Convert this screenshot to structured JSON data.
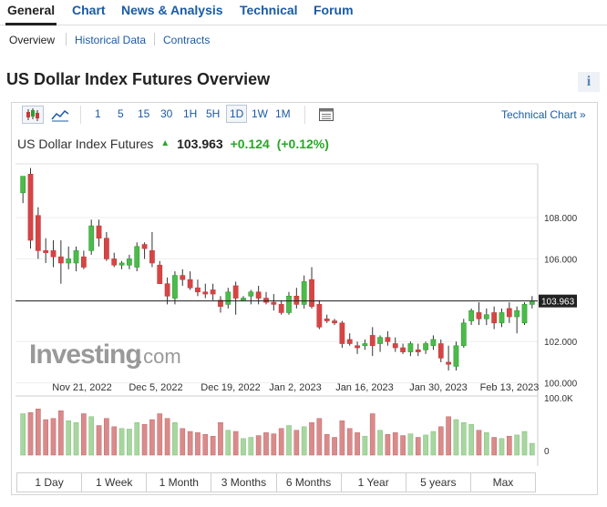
{
  "nav": {
    "tabs": [
      "General",
      "Chart",
      "News & Analysis",
      "Technical",
      "Forum"
    ],
    "active": "General"
  },
  "subnav": {
    "items": [
      "Overview",
      "Historical Data",
      "Contracts"
    ],
    "active": "Overview"
  },
  "page": {
    "title": "US Dollar Index Futures Overview",
    "info_icon": "i"
  },
  "toolbar": {
    "chart_type_icons": [
      "candlestick-icon",
      "line-chart-icon"
    ],
    "intervals": [
      "1",
      "5",
      "15",
      "30",
      "1H",
      "5H",
      "1D",
      "1W",
      "1M"
    ],
    "selected_interval": "1D",
    "table_icon": "table-icon",
    "technical_link": "Technical Chart »"
  },
  "quote": {
    "name": "US Dollar Index Futures",
    "arrow": "▲",
    "price": "103.963",
    "change": "+0.124",
    "change_pct": "(+0.12%)",
    "up_color": "#2aa52a"
  },
  "chart": {
    "watermark_main": "Investing",
    "watermark_suffix": ".com",
    "price_ticks": [
      "108.000",
      "106.000",
      "104.000",
      "102.000",
      "100.000"
    ],
    "last_price_label": "103.963",
    "date_ticks": [
      "Nov 21, 2022",
      "Dec 5, 2022",
      "Dec 19, 2022",
      "Jan 2, 2023",
      "Jan 16, 2023",
      "Jan 30, 2023",
      "Feb 13, 2023"
    ],
    "volume_ticks": [
      "100.0K",
      "0"
    ],
    "colors": {
      "up": "#2e9e2e",
      "down": "#c63a3a",
      "up_fill": "#4cbb4c",
      "down_fill": "#d64545",
      "vol_up": "#a8d6a0",
      "vol_down": "#d98b8b"
    }
  },
  "chart_data": {
    "type": "candlestick",
    "x_labels": [
      "Nov 21, 2022",
      "Dec 5, 2022",
      "Dec 19, 2022",
      "Jan 2, 2023",
      "Jan 16, 2023",
      "Jan 30, 2023",
      "Feb 13, 2023"
    ],
    "ylim": [
      99.5,
      110.6
    ],
    "y_ticks": [
      100,
      102,
      104,
      106,
      108
    ],
    "last_price": 103.963,
    "volume_ylim": [
      0,
      100000
    ],
    "candles": [
      {
        "o": 109.2,
        "h": 110.0,
        "l": 108.7,
        "c": 110.0,
        "v": 70000
      },
      {
        "o": 110.1,
        "h": 110.4,
        "l": 106.5,
        "c": 106.9,
        "v": 72000
      },
      {
        "o": 108.1,
        "h": 108.5,
        "l": 106.0,
        "c": 106.4,
        "v": 78000
      },
      {
        "o": 106.4,
        "h": 107.0,
        "l": 105.8,
        "c": 106.3,
        "v": 60000
      },
      {
        "o": 106.4,
        "h": 106.9,
        "l": 105.6,
        "c": 106.1,
        "v": 62000
      },
      {
        "o": 106.1,
        "h": 106.9,
        "l": 104.8,
        "c": 105.8,
        "v": 75000
      },
      {
        "o": 105.8,
        "h": 106.6,
        "l": 105.5,
        "c": 106.0,
        "v": 58000
      },
      {
        "o": 105.8,
        "h": 106.6,
        "l": 105.4,
        "c": 106.4,
        "v": 55000
      },
      {
        "o": 106.1,
        "h": 106.4,
        "l": 105.5,
        "c": 105.6,
        "v": 70000
      },
      {
        "o": 106.4,
        "h": 107.9,
        "l": 106.2,
        "c": 107.6,
        "v": 65000
      },
      {
        "o": 107.6,
        "h": 107.9,
        "l": 106.6,
        "c": 107.0,
        "v": 50000
      },
      {
        "o": 107.0,
        "h": 107.3,
        "l": 105.9,
        "c": 106.0,
        "v": 62000
      },
      {
        "o": 106.0,
        "h": 106.3,
        "l": 105.6,
        "c": 105.7,
        "v": 48000
      },
      {
        "o": 105.7,
        "h": 105.9,
        "l": 105.5,
        "c": 105.8,
        "v": 45000
      },
      {
        "o": 105.7,
        "h": 106.2,
        "l": 105.5,
        "c": 106.0,
        "v": 44000
      },
      {
        "o": 105.6,
        "h": 106.8,
        "l": 105.4,
        "c": 106.6,
        "v": 55000
      },
      {
        "o": 106.7,
        "h": 106.8,
        "l": 106.0,
        "c": 106.5,
        "v": 52000
      },
      {
        "o": 106.4,
        "h": 107.3,
        "l": 105.6,
        "c": 105.8,
        "v": 60000
      },
      {
        "o": 105.7,
        "h": 105.9,
        "l": 104.8,
        "c": 104.8,
        "v": 70000
      },
      {
        "o": 104.8,
        "h": 105.1,
        "l": 103.8,
        "c": 104.2,
        "v": 62000
      },
      {
        "o": 104.1,
        "h": 105.4,
        "l": 103.8,
        "c": 105.2,
        "v": 55000
      },
      {
        "o": 105.2,
        "h": 105.5,
        "l": 104.7,
        "c": 105.0,
        "v": 45000
      },
      {
        "o": 105.0,
        "h": 105.4,
        "l": 104.5,
        "c": 104.6,
        "v": 40000
      },
      {
        "o": 104.6,
        "h": 105.0,
        "l": 104.2,
        "c": 104.4,
        "v": 38000
      },
      {
        "o": 104.4,
        "h": 104.8,
        "l": 104.1,
        "c": 104.3,
        "v": 35000
      },
      {
        "o": 104.5,
        "h": 104.8,
        "l": 104.0,
        "c": 104.3,
        "v": 32000
      },
      {
        "o": 104.0,
        "h": 104.2,
        "l": 103.4,
        "c": 103.7,
        "v": 55000
      },
      {
        "o": 103.8,
        "h": 104.6,
        "l": 103.6,
        "c": 104.4,
        "v": 42000
      },
      {
        "o": 104.7,
        "h": 104.9,
        "l": 103.3,
        "c": 104.1,
        "v": 40000
      },
      {
        "o": 104.0,
        "h": 104.2,
        "l": 104.0,
        "c": 104.1,
        "v": 28000
      },
      {
        "o": 104.2,
        "h": 104.5,
        "l": 103.8,
        "c": 104.4,
        "v": 30000
      },
      {
        "o": 104.4,
        "h": 104.7,
        "l": 103.8,
        "c": 104.1,
        "v": 33000
      },
      {
        "o": 104.1,
        "h": 104.4,
        "l": 103.8,
        "c": 103.9,
        "v": 38000
      },
      {
        "o": 103.9,
        "h": 104.3,
        "l": 103.5,
        "c": 103.8,
        "v": 36000
      },
      {
        "o": 103.8,
        "h": 104.0,
        "l": 103.3,
        "c": 103.4,
        "v": 45000
      },
      {
        "o": 103.4,
        "h": 104.4,
        "l": 103.3,
        "c": 104.2,
        "v": 50000
      },
      {
        "o": 104.2,
        "h": 104.6,
        "l": 103.6,
        "c": 103.8,
        "v": 42000
      },
      {
        "o": 103.8,
        "h": 105.2,
        "l": 103.6,
        "c": 104.9,
        "v": 48000
      },
      {
        "o": 105.0,
        "h": 105.6,
        "l": 103.6,
        "c": 103.7,
        "v": 55000
      },
      {
        "o": 103.8,
        "h": 104.0,
        "l": 102.6,
        "c": 102.7,
        "v": 62000
      },
      {
        "o": 103.1,
        "h": 103.3,
        "l": 102.9,
        "c": 103.0,
        "v": 35000
      },
      {
        "o": 103.0,
        "h": 103.1,
        "l": 102.8,
        "c": 102.9,
        "v": 30000
      },
      {
        "o": 102.9,
        "h": 103.0,
        "l": 101.7,
        "c": 101.9,
        "v": 58000
      },
      {
        "o": 102.1,
        "h": 102.4,
        "l": 101.8,
        "c": 101.9,
        "v": 45000
      },
      {
        "o": 101.8,
        "h": 102.0,
        "l": 101.4,
        "c": 101.7,
        "v": 38000
      },
      {
        "o": 101.8,
        "h": 102.1,
        "l": 101.6,
        "c": 101.9,
        "v": 32000
      },
      {
        "o": 102.3,
        "h": 102.7,
        "l": 101.3,
        "c": 101.8,
        "v": 70000
      },
      {
        "o": 101.9,
        "h": 102.3,
        "l": 101.5,
        "c": 102.2,
        "v": 42000
      },
      {
        "o": 102.2,
        "h": 102.5,
        "l": 101.8,
        "c": 102.0,
        "v": 35000
      },
      {
        "o": 101.9,
        "h": 102.2,
        "l": 101.5,
        "c": 101.7,
        "v": 38000
      },
      {
        "o": 101.7,
        "h": 101.9,
        "l": 101.4,
        "c": 101.5,
        "v": 33000
      },
      {
        "o": 101.5,
        "h": 102.0,
        "l": 101.3,
        "c": 101.9,
        "v": 36000
      },
      {
        "o": 101.6,
        "h": 101.9,
        "l": 101.3,
        "c": 101.5,
        "v": 30000
      },
      {
        "o": 101.6,
        "h": 102.0,
        "l": 101.4,
        "c": 101.9,
        "v": 34000
      },
      {
        "o": 101.8,
        "h": 102.3,
        "l": 101.6,
        "c": 102.1,
        "v": 40000
      },
      {
        "o": 101.9,
        "h": 102.1,
        "l": 101.0,
        "c": 101.2,
        "v": 48000
      },
      {
        "o": 101.0,
        "h": 101.8,
        "l": 100.6,
        "c": 100.9,
        "v": 65000
      },
      {
        "o": 100.8,
        "h": 102.0,
        "l": 100.6,
        "c": 101.8,
        "v": 60000
      },
      {
        "o": 101.8,
        "h": 103.1,
        "l": 101.7,
        "c": 102.9,
        "v": 55000
      },
      {
        "o": 103.0,
        "h": 103.6,
        "l": 102.8,
        "c": 103.5,
        "v": 52000
      },
      {
        "o": 103.4,
        "h": 103.9,
        "l": 102.8,
        "c": 103.1,
        "v": 42000
      },
      {
        "o": 103.1,
        "h": 103.6,
        "l": 102.8,
        "c": 103.3,
        "v": 38000
      },
      {
        "o": 103.4,
        "h": 103.7,
        "l": 102.6,
        "c": 102.9,
        "v": 30000
      },
      {
        "o": 102.9,
        "h": 103.6,
        "l": 102.7,
        "c": 103.4,
        "v": 28000
      },
      {
        "o": 103.6,
        "h": 103.9,
        "l": 102.9,
        "c": 103.2,
        "v": 32000
      },
      {
        "o": 103.2,
        "h": 103.7,
        "l": 102.4,
        "c": 103.5,
        "v": 34000
      },
      {
        "o": 102.9,
        "h": 103.9,
        "l": 102.8,
        "c": 103.8,
        "v": 40000
      },
      {
        "o": 103.8,
        "h": 104.2,
        "l": 103.6,
        "c": 103.96,
        "v": 20000
      }
    ]
  },
  "ranges": [
    "1 Day",
    "1 Week",
    "1 Month",
    "3 Months",
    "6 Months",
    "1 Year",
    "5 years",
    "Max"
  ]
}
